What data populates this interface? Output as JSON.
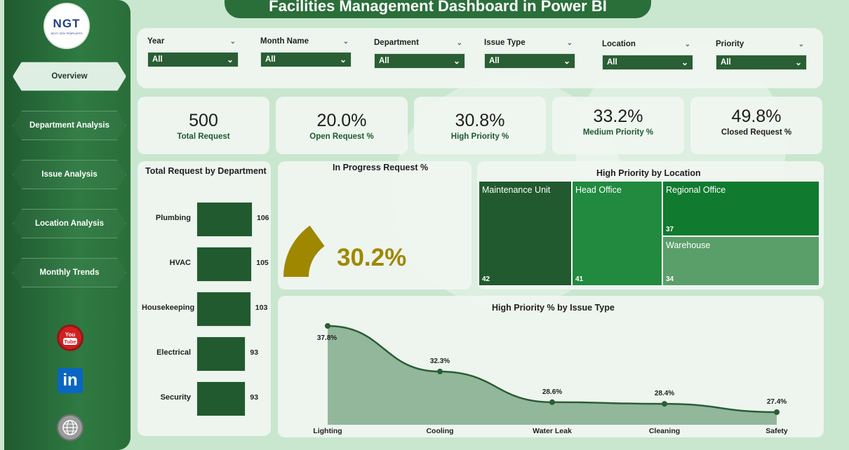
{
  "title": "Facilities Management Dashboard in Power BI",
  "logo": {
    "text": "NGT",
    "tagline": "NEXT GEN TEMPLATES"
  },
  "nav": [
    {
      "label": "Overview",
      "active": true
    },
    {
      "label": "Department Analysis",
      "active": false
    },
    {
      "label": "Issue Analysis",
      "active": false
    },
    {
      "label": "Location Analysis",
      "active": false
    },
    {
      "label": "Monthly Trends",
      "active": false
    }
  ],
  "social": [
    {
      "name": "youtube-icon",
      "text": "You Tube",
      "color": "#d21f1f"
    },
    {
      "name": "linkedin-icon",
      "text": "in",
      "color": "#0a66c2"
    },
    {
      "name": "globe-icon",
      "text": "WWW",
      "color": "#8a8a8a"
    }
  ],
  "filters": [
    {
      "label": "Year",
      "value": "All"
    },
    {
      "label": "Month Name",
      "value": "All"
    },
    {
      "label": "Department",
      "value": "All"
    },
    {
      "label": "Issue Type",
      "value": "All"
    },
    {
      "label": "Location",
      "value": "All"
    },
    {
      "label": "Priority",
      "value": "All"
    }
  ],
  "kpis": [
    {
      "value": "500",
      "label": "Total Request"
    },
    {
      "value": "20.0%",
      "label": "Open Request %"
    },
    {
      "value": "30.8%",
      "label": "High Priority %"
    },
    {
      "value": "33.2%",
      "label": "Medium Priority %"
    },
    {
      "value": "49.8%",
      "label": "Closed Request %"
    }
  ],
  "gauge": {
    "title": "In Progress Request %",
    "value_label": "30.2%",
    "value": 0.302,
    "color": "#a08700"
  },
  "treemap": {
    "title": "High Priority by Location",
    "cells": [
      {
        "name": "Maintenance Unit",
        "value": "42",
        "color": "#215a2e"
      },
      {
        "name": "Head Office",
        "value": "41",
        "color": "#218a3f"
      },
      {
        "name": "Regional Office",
        "value": "37",
        "color": "#107a2f"
      },
      {
        "name": "Warehouse",
        "value": "34",
        "color": "#5a9e6a"
      }
    ]
  },
  "chart_data": [
    {
      "type": "bar",
      "title": "Total Request by Department",
      "orientation": "horizontal",
      "categories": [
        "Plumbing",
        "HVAC",
        "Housekeeping",
        "Electrical",
        "Security"
      ],
      "values": [
        106,
        105,
        103,
        93,
        93
      ],
      "color": "#215a2e"
    },
    {
      "type": "area",
      "title": "High Priority % by Issue Type",
      "categories": [
        "Lighting",
        "Cooling",
        "Water Leak",
        "Cleaning",
        "Safety"
      ],
      "values": [
        37.8,
        32.3,
        28.6,
        28.4,
        27.4
      ],
      "labels": [
        "37.8%",
        "32.3%",
        "28.6%",
        "28.4%",
        "27.4%"
      ],
      "color": "#2a5e34"
    }
  ]
}
